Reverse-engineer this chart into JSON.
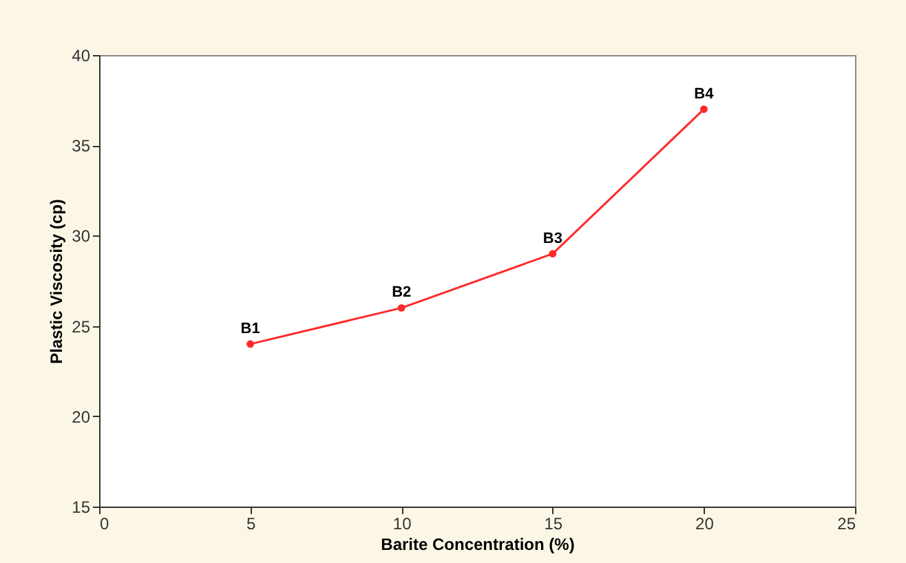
{
  "chart_data": {
    "type": "line",
    "xlabel": "Barite Concentration (%)",
    "ylabel": "Plastic Viscosity (cp)",
    "x": [
      5,
      10,
      15,
      20
    ],
    "series": [
      {
        "color": "#ff2a2a",
        "values": [
          24,
          26,
          29,
          37
        ]
      }
    ],
    "xlim": [
      0,
      25
    ],
    "xticks": [
      0,
      5,
      10,
      15,
      20,
      25
    ],
    "ylim": [
      15,
      40
    ],
    "yticks": [
      15,
      20,
      25,
      30,
      35,
      40
    ],
    "grid": false,
    "marker": "circle",
    "line_style": "solid",
    "annotations": [
      {
        "text": "B1",
        "x": 5,
        "y": 24
      },
      {
        "text": "B2",
        "x": 10,
        "y": 26
      },
      {
        "text": "B3",
        "x": 15,
        "y": 29
      },
      {
        "text": "B4",
        "x": 20,
        "y": 37
      }
    ]
  }
}
